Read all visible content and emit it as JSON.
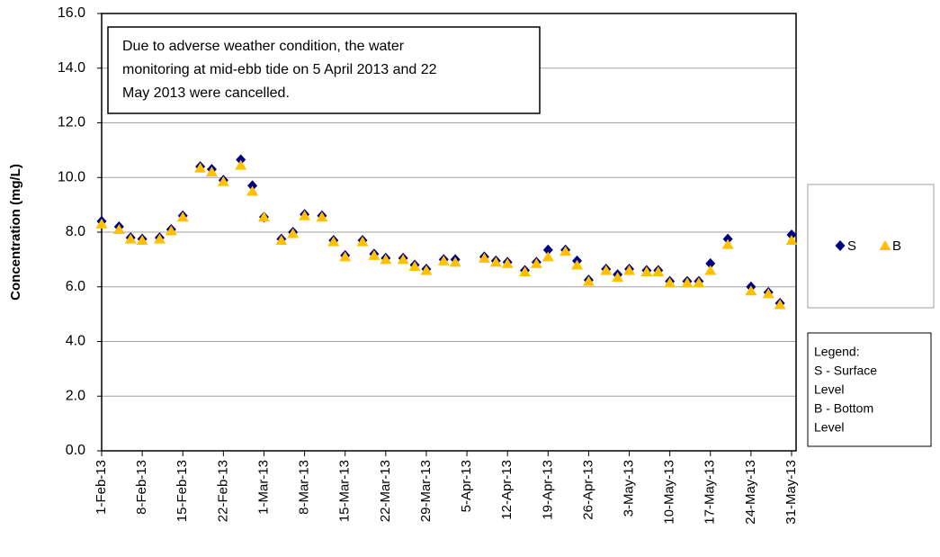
{
  "chart_data": {
    "type": "scatter",
    "y_label": "Concentration (mg/L)",
    "annotation": [
      "Due  to adverse weather condition, the  water",
      "monitoring at mid-ebb tide on 5 April 2013  and 22",
      "May 2013 were cancelled."
    ],
    "note": [
      "Legend:",
      "S - Surface",
      "Level",
      "B - Bottom",
      "Level"
    ],
    "x": [
      "2013-02-01",
      "2013-02-04",
      "2013-02-06",
      "2013-02-08",
      "2013-02-11",
      "2013-02-13",
      "2013-02-15",
      "2013-02-18",
      "2013-02-20",
      "2013-02-22",
      "2013-02-25",
      "2013-02-27",
      "2013-03-01",
      "2013-03-04",
      "2013-03-06",
      "2013-03-08",
      "2013-03-11",
      "2013-03-13",
      "2013-03-15",
      "2013-03-18",
      "2013-03-20",
      "2013-03-22",
      "2013-03-25",
      "2013-03-27",
      "2013-03-29",
      "2013-04-01",
      "2013-04-03",
      "2013-04-08",
      "2013-04-10",
      "2013-04-12",
      "2013-04-15",
      "2013-04-17",
      "2013-04-19",
      "2013-04-22",
      "2013-04-24",
      "2013-04-26",
      "2013-04-29",
      "2013-05-01",
      "2013-05-03",
      "2013-05-06",
      "2013-05-08",
      "2013-05-10",
      "2013-05-13",
      "2013-05-15",
      "2013-05-17",
      "2013-05-20",
      "2013-05-24",
      "2013-05-27",
      "2013-05-29",
      "2013-05-31"
    ],
    "series": [
      {
        "name": "S",
        "color": "#000080",
        "marker": "diamond",
        "values": [
          8.4,
          8.2,
          7.8,
          7.75,
          7.8,
          8.1,
          8.6,
          10.4,
          10.3,
          9.9,
          10.65,
          9.7,
          8.55,
          7.75,
          8.0,
          8.65,
          8.6,
          7.7,
          7.15,
          7.7,
          7.2,
          7.05,
          7.05,
          6.8,
          6.65,
          7.0,
          7.0,
          7.1,
          6.95,
          6.9,
          6.6,
          6.9,
          7.35,
          7.35,
          6.95,
          6.25,
          6.65,
          6.45,
          6.65,
          6.6,
          6.6,
          6.2,
          6.2,
          6.2,
          6.85,
          7.75,
          6.0,
          5.8,
          5.4,
          7.9
        ]
      },
      {
        "name": "B",
        "color": "#FFC000",
        "marker": "triangle",
        "values": [
          8.3,
          8.1,
          7.75,
          7.7,
          7.75,
          8.05,
          8.55,
          10.35,
          10.2,
          9.85,
          10.45,
          9.5,
          8.55,
          7.7,
          7.95,
          8.6,
          8.55,
          7.65,
          7.1,
          7.65,
          7.15,
          7.0,
          7.0,
          6.75,
          6.6,
          6.95,
          6.9,
          7.05,
          6.9,
          6.85,
          6.55,
          6.85,
          7.1,
          7.3,
          6.8,
          6.2,
          6.6,
          6.35,
          6.6,
          6.55,
          6.55,
          6.15,
          6.15,
          6.15,
          6.6,
          7.55,
          5.85,
          5.75,
          5.35,
          7.7
        ]
      }
    ],
    "xlim": [
      "2013-02-01",
      "2013-05-31"
    ],
    "xticks": [
      {
        "value": "2013-02-01",
        "label": "1-Feb-13"
      },
      {
        "value": "2013-02-08",
        "label": "8-Feb-13"
      },
      {
        "value": "2013-02-15",
        "label": "15-Feb-13"
      },
      {
        "value": "2013-02-22",
        "label": "22-Feb-13"
      },
      {
        "value": "2013-03-01",
        "label": "1-Mar-13"
      },
      {
        "value": "2013-03-08",
        "label": "8-Mar-13"
      },
      {
        "value": "2013-03-15",
        "label": "15-Mar-13"
      },
      {
        "value": "2013-03-22",
        "label": "22-Mar-13"
      },
      {
        "value": "2013-03-29",
        "label": "29-Mar-13"
      },
      {
        "value": "2013-04-05",
        "label": "5-Apr-13"
      },
      {
        "value": "2013-04-12",
        "label": "12-Apr-13"
      },
      {
        "value": "2013-04-19",
        "label": "19-Apr-13"
      },
      {
        "value": "2013-04-26",
        "label": "26-Apr-13"
      },
      {
        "value": "2013-05-03",
        "label": "3-May-13"
      },
      {
        "value": "2013-05-10",
        "label": "10-May-13"
      },
      {
        "value": "2013-05-17",
        "label": "17-May-13"
      },
      {
        "value": "2013-05-24",
        "label": "24-May-13"
      },
      {
        "value": "2013-05-31",
        "label": "31-May-13"
      }
    ],
    "ylim": [
      0,
      16
    ],
    "yticks": [
      {
        "value": 0,
        "label": "0.0"
      },
      {
        "value": 2,
        "label": "2.0"
      },
      {
        "value": 4,
        "label": "4.0"
      },
      {
        "value": 6,
        "label": "6.0"
      },
      {
        "value": 8,
        "label": "8.0"
      },
      {
        "value": 10,
        "label": "10.0"
      },
      {
        "value": 12,
        "label": "12.0"
      },
      {
        "value": 14,
        "label": "14.0"
      },
      {
        "value": 16,
        "label": "16.0"
      }
    ],
    "grid": true
  }
}
